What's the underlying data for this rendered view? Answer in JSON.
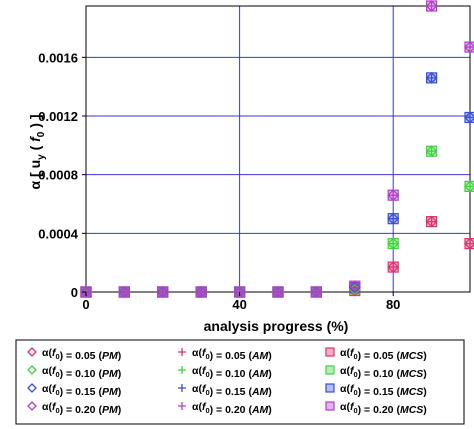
{
  "chart_data": {
    "type": "scatter",
    "xlabel": "analysis progress (%)",
    "ylabel": "α[u_y(f_0)]",
    "ylabel_parts": {
      "alpha": "α",
      "u": "u",
      "y": "y",
      "f": "f",
      "zero": "0"
    },
    "xlim": [
      0,
      100
    ],
    "ylim": [
      0,
      0.00195
    ],
    "x_ticks": [
      0,
      40,
      80
    ],
    "y_ticks": [
      0,
      0.0004,
      0.0008,
      0.0012,
      0.0016
    ],
    "x_tick_labels": [
      "0",
      "40",
      "80"
    ],
    "y_tick_labels": [
      "0",
      "0.0004",
      "0.0008",
      "0.0012",
      "0.0016"
    ],
    "grid": true,
    "legend_position": "bottom",
    "series": [
      {
        "name": "α(f0) = 0.05 (PM)",
        "label": {
          "f0": "0.05",
          "method": "PM"
        },
        "marker": "diamond",
        "color": "#e0306e",
        "x": [
          0,
          10,
          20,
          30,
          40,
          50,
          60,
          70,
          80,
          90,
          100
        ],
        "y": [
          0,
          0,
          0,
          0,
          0,
          0,
          0,
          1e-05,
          0.00017,
          0.00048,
          0.00033
        ]
      },
      {
        "name": "α(f0) = 0.10 (PM)",
        "label": {
          "f0": "0.10",
          "method": "PM"
        },
        "marker": "diamond",
        "color": "#3fd43f",
        "x": [
          0,
          10,
          20,
          30,
          40,
          50,
          60,
          70,
          80,
          90,
          100
        ],
        "y": [
          0,
          0,
          0,
          0,
          0,
          0,
          0,
          2e-05,
          0.00033,
          0.00096,
          0.00072
        ]
      },
      {
        "name": "α(f0) = 0.15 (PM)",
        "label": {
          "f0": "0.15",
          "method": "PM"
        },
        "marker": "diamond",
        "color": "#3a4fd8",
        "x": [
          0,
          10,
          20,
          30,
          40,
          50,
          60,
          70,
          80,
          90,
          100
        ],
        "y": [
          0,
          0,
          0,
          0,
          0,
          0,
          0,
          3e-05,
          0.0005,
          0.00146,
          0.00119
        ]
      },
      {
        "name": "α(f0) = 0.20 (PM)",
        "label": {
          "f0": "0.20",
          "method": "PM"
        },
        "marker": "diamond",
        "color": "#b040c8",
        "x": [
          0,
          10,
          20,
          30,
          40,
          50,
          60,
          70,
          80,
          90,
          100
        ],
        "y": [
          0,
          0,
          0,
          0,
          0,
          0,
          0,
          4e-05,
          0.00066,
          0.00195,
          0.00167
        ]
      },
      {
        "name": "α(f0) = 0.05 (AM)",
        "label": {
          "f0": "0.05",
          "method": "AM"
        },
        "marker": "plus",
        "color": "#e0306e",
        "x": [
          0,
          10,
          20,
          30,
          40,
          50,
          60,
          70,
          80,
          90,
          100
        ],
        "y": [
          0,
          0,
          0,
          0,
          0,
          0,
          0,
          1e-05,
          0.00017,
          0.00048,
          0.00033
        ]
      },
      {
        "name": "α(f0) = 0.10 (AM)",
        "label": {
          "f0": "0.10",
          "method": "AM"
        },
        "marker": "plus",
        "color": "#3fd43f",
        "x": [
          0,
          10,
          20,
          30,
          40,
          50,
          60,
          70,
          80,
          90,
          100
        ],
        "y": [
          0,
          0,
          0,
          0,
          0,
          0,
          0,
          2e-05,
          0.00033,
          0.00096,
          0.00072
        ]
      },
      {
        "name": "α(f0) = 0.15 (AM)",
        "label": {
          "f0": "0.15",
          "method": "AM"
        },
        "marker": "plus",
        "color": "#3a4fd8",
        "x": [
          0,
          10,
          20,
          30,
          40,
          50,
          60,
          70,
          80,
          90,
          100
        ],
        "y": [
          0,
          0,
          0,
          0,
          0,
          0,
          0,
          3e-05,
          0.0005,
          0.00146,
          0.00119
        ]
      },
      {
        "name": "α(f0) = 0.20 (AM)",
        "label": {
          "f0": "0.20",
          "method": "AM"
        },
        "marker": "plus",
        "color": "#b040c8",
        "x": [
          0,
          10,
          20,
          30,
          40,
          50,
          60,
          70,
          80,
          90,
          100
        ],
        "y": [
          0,
          0,
          0,
          0,
          0,
          0,
          0,
          4e-05,
          0.00066,
          0.00195,
          0.00167
        ]
      },
      {
        "name": "α(f0) = 0.05 (MCS)",
        "label": {
          "f0": "0.05",
          "method": "MCS"
        },
        "marker": "square",
        "color": "#e0306e",
        "x": [
          0,
          10,
          20,
          30,
          40,
          50,
          60,
          70,
          80,
          90,
          100
        ],
        "y": [
          0,
          0,
          0,
          0,
          0,
          0,
          0,
          1e-05,
          0.00017,
          0.00048,
          0.00033
        ]
      },
      {
        "name": "α(f0) = 0.10 (MCS)",
        "label": {
          "f0": "0.10",
          "method": "MCS"
        },
        "marker": "square",
        "color": "#3fd43f",
        "x": [
          0,
          10,
          20,
          30,
          40,
          50,
          60,
          70,
          80,
          90,
          100
        ],
        "y": [
          0,
          0,
          0,
          0,
          0,
          0,
          0,
          2e-05,
          0.00033,
          0.00096,
          0.00072
        ]
      },
      {
        "name": "α(f0) = 0.15 (MCS)",
        "label": {
          "f0": "0.15",
          "method": "MCS"
        },
        "marker": "square",
        "color": "#3a4fd8",
        "x": [
          0,
          10,
          20,
          30,
          40,
          50,
          60,
          70,
          80,
          90,
          100
        ],
        "y": [
          0,
          0,
          0,
          0,
          0,
          0,
          0,
          3e-05,
          0.0005,
          0.00146,
          0.00119
        ]
      },
      {
        "name": "α(f0) = 0.20 (MCS)",
        "label": {
          "f0": "0.20",
          "method": "MCS"
        },
        "marker": "square",
        "color": "#b040c8",
        "x": [
          0,
          10,
          20,
          30,
          40,
          50,
          60,
          70,
          80,
          90,
          100
        ],
        "y": [
          0,
          0,
          0,
          0,
          0,
          0,
          0,
          4e-05,
          0.00066,
          0.00195,
          0.00167
        ]
      }
    ]
  }
}
